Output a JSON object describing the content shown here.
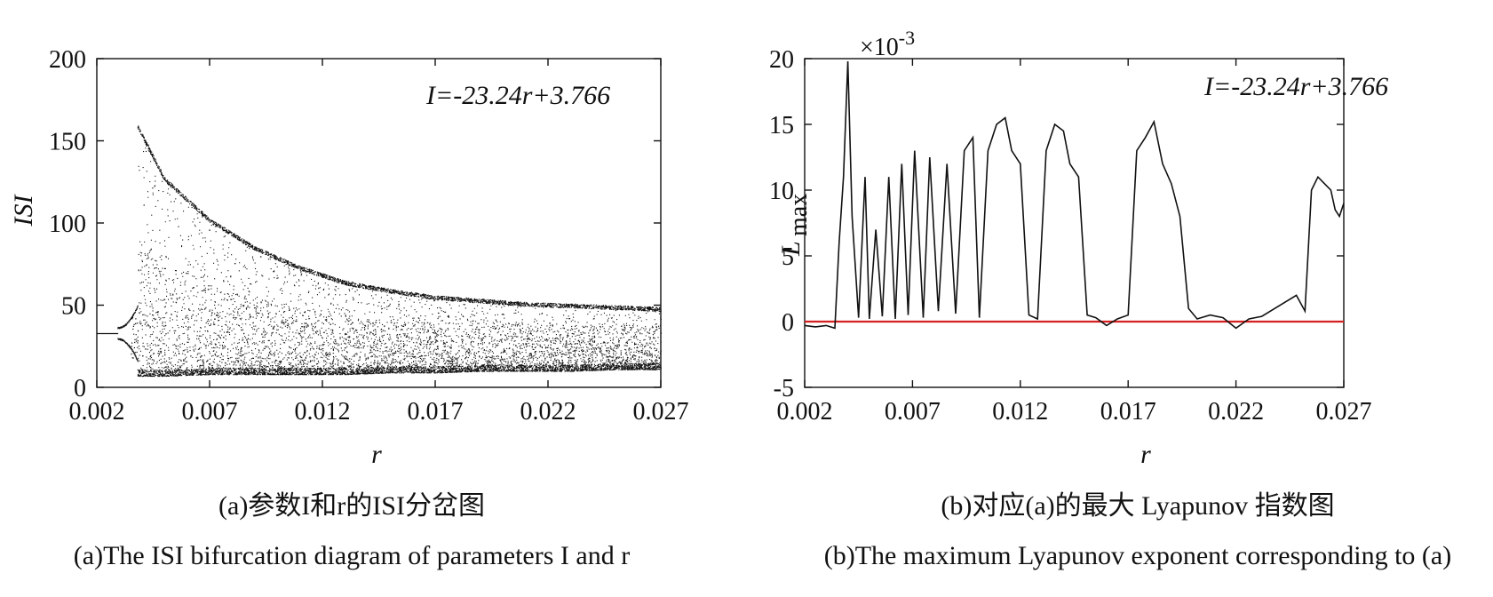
{
  "chart_data": [
    {
      "type": "scatter",
      "annotation": "I=-23.24r+3.766",
      "xlabel": "r",
      "ylabel": "ISI",
      "xlim": [
        0.002,
        0.027
      ],
      "ylim": [
        0,
        200
      ],
      "xticks": [
        "0.002",
        "0.007",
        "0.012",
        "0.017",
        "0.022",
        "0.027"
      ],
      "yticks": [
        "0",
        "50",
        "100",
        "150",
        "200"
      ],
      "caption_cn": "(a)参数I和r的ISI分岔图",
      "caption_en": "(a)The ISI bifurcation diagram of parameters I and r",
      "envelope": {
        "r": [
          0.0038,
          0.005,
          0.007,
          0.009,
          0.011,
          0.013,
          0.015,
          0.017,
          0.019,
          0.021,
          0.023,
          0.025,
          0.027
        ],
        "upper_isi": [
          160,
          128,
          103,
          86,
          74,
          65,
          60,
          56,
          54,
          52,
          51,
          50,
          49
        ],
        "lower_isi": [
          7,
          7,
          8,
          8,
          8,
          8,
          9,
          9,
          10,
          10,
          10,
          11,
          11
        ]
      },
      "periodic_branch": {
        "r": [
          0.002,
          0.0028,
          0.0031,
          0.0034,
          0.0036,
          0.0038
        ],
        "isi": [
          33,
          33,
          [
            28,
            38
          ],
          [
            26,
            40
          ],
          [
            20,
            45
          ],
          [
            10,
            50
          ]
        ]
      }
    },
    {
      "type": "line",
      "annotation": "I=-23.24r+3.766",
      "xlabel": "r",
      "ylabel_main": "L",
      "ylabel_sub": "max",
      "exponent_label": "×10-3",
      "exponent_base": "×10",
      "exponent_power": "-3",
      "xlim": [
        0.002,
        0.027
      ],
      "ylim": [
        -5,
        20
      ],
      "xticks": [
        "0.002",
        "0.007",
        "0.012",
        "0.017",
        "0.022",
        "0.027"
      ],
      "yticks": [
        "-5",
        "0",
        "5",
        "10",
        "15",
        "20"
      ],
      "zero_line_color": "#d62020",
      "line_color": "#111111",
      "caption_cn": "(b)对应(a)的最大 Lyapunov 指数图",
      "caption_en": "(b)The maximum Lyapunov exponent corresponding to (a)",
      "x": [
        0.002,
        0.0025,
        0.003,
        0.0034,
        0.0036,
        0.0038,
        0.004,
        0.0042,
        0.0045,
        0.0048,
        0.005,
        0.0053,
        0.0056,
        0.0059,
        0.0062,
        0.0065,
        0.0068,
        0.0071,
        0.0075,
        0.0078,
        0.0082,
        0.0086,
        0.009,
        0.0094,
        0.0098,
        0.0101,
        0.0105,
        0.0109,
        0.0113,
        0.0116,
        0.012,
        0.0124,
        0.0128,
        0.0132,
        0.0136,
        0.014,
        0.0143,
        0.0147,
        0.0151,
        0.0155,
        0.016,
        0.0165,
        0.017,
        0.0174,
        0.0178,
        0.0182,
        0.0186,
        0.019,
        0.0194,
        0.0198,
        0.0202,
        0.0208,
        0.0214,
        0.022,
        0.0226,
        0.0232,
        0.0238,
        0.0243,
        0.0248,
        0.0252,
        0.0255,
        0.0258,
        0.0261,
        0.0264,
        0.0266,
        0.0268,
        0.027
      ],
      "y": [
        -0.3,
        -0.4,
        -0.3,
        -0.5,
        6,
        11,
        19.8,
        8,
        0.3,
        11,
        0.2,
        7,
        0.4,
        11,
        0.2,
        12,
        0.5,
        13,
        0.3,
        12.5,
        0.8,
        12,
        0.6,
        13,
        14,
        0.3,
        13,
        15,
        15.5,
        13,
        12,
        0.5,
        0.2,
        13,
        15,
        14.5,
        12,
        11,
        0.5,
        0.3,
        -0.3,
        0.2,
        0.5,
        13,
        14,
        15.2,
        12,
        10.5,
        8,
        1,
        0.2,
        0.5,
        0.3,
        -0.5,
        0.2,
        0.4,
        1,
        1.5,
        2,
        0.8,
        10,
        11,
        10.5,
        10,
        8.5,
        8,
        9
      ]
    }
  ]
}
